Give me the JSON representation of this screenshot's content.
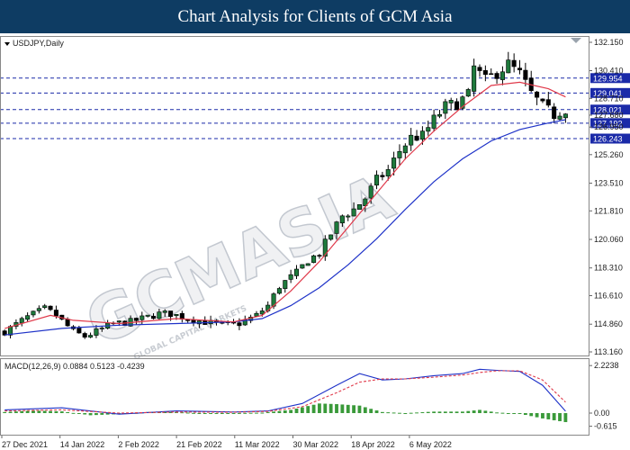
{
  "banner": {
    "title": "Chart Analysis for Clients of GCM Asia"
  },
  "colors": {
    "banner_bg": "#0e3c63",
    "bull": "#1e7a3c",
    "bear": "#000000",
    "ma_fast": "#e0394a",
    "ma_slow": "#1e32c8",
    "level_line": "#1a2aa8",
    "tag_bg": "#1a2aa8",
    "macd_line": "#1e32c8",
    "signal_line": "#e0394a",
    "hist": "#3a9a3a"
  },
  "watermark": {
    "text": "GCMASIA",
    "subtext": "GLOBAL CAPITAL MARKETS"
  },
  "chart_data": [
    {
      "type": "candlestick",
      "symbol_label": "USDJPY,Daily",
      "ylim": [
        113.16,
        132.15
      ],
      "y_ticks": [
        "132.150",
        "130.410",
        "128.710",
        "127.680",
        "126.950",
        "125.260",
        "123.510",
        "121.810",
        "120.060",
        "118.310",
        "116.610",
        "114.860",
        "113.160"
      ],
      "x_ticks": [
        "27 Dec 2021",
        "14 Jan 2022",
        "2 Feb 2022",
        "21 Feb 2022",
        "11 Mar 2022",
        "30 Mar 2022",
        "18 Apr 2022",
        "6 May 2022"
      ],
      "levels": [
        "129.954",
        "129.041",
        "128.021",
        "127.192",
        "126.243"
      ],
      "close_path": [
        [
          0,
          114.4
        ],
        [
          4,
          115.3
        ],
        [
          7,
          115.8
        ],
        [
          9,
          115.4
        ],
        [
          12,
          114.4
        ],
        [
          14,
          114.1
        ],
        [
          16,
          114.4
        ],
        [
          19,
          114.9
        ],
        [
          22,
          115.0
        ],
        [
          25,
          115.3
        ],
        [
          27,
          115.5
        ],
        [
          29,
          115.5
        ],
        [
          32,
          115.2
        ],
        [
          35,
          115.0
        ],
        [
          38,
          114.8
        ],
        [
          41,
          114.9
        ],
        [
          44,
          115.4
        ],
        [
          46,
          116.0
        ],
        [
          48,
          117.2
        ],
        [
          51,
          118.0
        ],
        [
          53,
          118.8
        ],
        [
          55,
          119.2
        ],
        [
          57,
          120.4
        ],
        [
          59,
          121.5
        ],
        [
          61,
          121.9
        ],
        [
          63,
          122.6
        ],
        [
          65,
          123.7
        ],
        [
          67,
          124.3
        ],
        [
          69,
          125.5
        ],
        [
          71,
          126.3
        ],
        [
          73,
          126.4
        ],
        [
          75,
          127.4
        ],
        [
          77,
          128.2
        ],
        [
          79,
          128.4
        ],
        [
          81,
          128.9
        ],
        [
          82,
          130.6
        ],
        [
          84,
          129.8
        ],
        [
          86,
          130.3
        ],
        [
          88,
          130.8
        ],
        [
          90,
          130.2
        ],
        [
          92,
          129.0
        ],
        [
          94,
          128.2
        ],
        [
          96,
          127.7
        ],
        [
          98,
          128.1
        ]
      ],
      "ma_fast_path": [
        [
          0,
          114.6
        ],
        [
          8,
          115.4
        ],
        [
          12,
          115.1
        ],
        [
          20,
          114.9
        ],
        [
          30,
          115.2
        ],
        [
          40,
          115.0
        ],
        [
          45,
          115.4
        ],
        [
          50,
          116.9
        ],
        [
          55,
          118.7
        ],
        [
          60,
          120.8
        ],
        [
          65,
          122.9
        ],
        [
          70,
          125.0
        ],
        [
          75,
          126.7
        ],
        [
          80,
          128.2
        ],
        [
          85,
          129.5
        ],
        [
          90,
          129.7
        ],
        [
          95,
          129.3
        ],
        [
          98,
          128.8
        ]
      ],
      "ma_slow_path": [
        [
          0,
          114.2
        ],
        [
          10,
          114.6
        ],
        [
          20,
          114.8
        ],
        [
          30,
          114.9
        ],
        [
          40,
          115.0
        ],
        [
          45,
          115.2
        ],
        [
          50,
          116.0
        ],
        [
          55,
          117.1
        ],
        [
          60,
          118.5
        ],
        [
          65,
          120.1
        ],
        [
          70,
          121.9
        ],
        [
          75,
          123.6
        ],
        [
          80,
          125.0
        ],
        [
          85,
          126.1
        ],
        [
          90,
          126.8
        ],
        [
          95,
          127.2
        ],
        [
          98,
          127.4
        ]
      ]
    },
    {
      "type": "line",
      "title": "MACD(12,26,9) 0.0884 0.5123 -0.4239",
      "ylim": [
        -0.8,
        2.4
      ],
      "y_ticks": [
        "2.2238",
        "0.00",
        "-0.615"
      ],
      "macd_path": [
        [
          0,
          0.15
        ],
        [
          10,
          0.25
        ],
        [
          20,
          -0.05
        ],
        [
          30,
          0.1
        ],
        [
          40,
          0.05
        ],
        [
          46,
          0.1
        ],
        [
          52,
          0.45
        ],
        [
          58,
          1.3
        ],
        [
          62,
          1.85
        ],
        [
          66,
          1.55
        ],
        [
          70,
          1.6
        ],
        [
          75,
          1.75
        ],
        [
          80,
          1.85
        ],
        [
          83,
          2.05
        ],
        [
          86,
          2.0
        ],
        [
          90,
          1.95
        ],
        [
          94,
          1.3
        ],
        [
          98,
          0.09
        ]
      ],
      "signal_path": [
        [
          0,
          0.1
        ],
        [
          10,
          0.15
        ],
        [
          20,
          0.0
        ],
        [
          30,
          0.05
        ],
        [
          40,
          0.04
        ],
        [
          46,
          0.08
        ],
        [
          52,
          0.3
        ],
        [
          58,
          0.95
        ],
        [
          62,
          1.45
        ],
        [
          66,
          1.6
        ],
        [
          70,
          1.6
        ],
        [
          75,
          1.68
        ],
        [
          80,
          1.78
        ],
        [
          83,
          1.9
        ],
        [
          86,
          1.98
        ],
        [
          90,
          1.98
        ],
        [
          94,
          1.55
        ],
        [
          98,
          0.51
        ]
      ],
      "hist_path": [
        [
          0,
          0.05
        ],
        [
          5,
          0.12
        ],
        [
          10,
          0.08
        ],
        [
          15,
          -0.1
        ],
        [
          20,
          -0.05
        ],
        [
          25,
          0.05
        ],
        [
          30,
          0.05
        ],
        [
          35,
          -0.02
        ],
        [
          40,
          0.0
        ],
        [
          45,
          0.02
        ],
        [
          50,
          0.15
        ],
        [
          55,
          0.45
        ],
        [
          58,
          0.42
        ],
        [
          62,
          0.35
        ],
        [
          66,
          0.05
        ],
        [
          70,
          0.0
        ],
        [
          75,
          0.07
        ],
        [
          80,
          0.07
        ],
        [
          83,
          0.15
        ],
        [
          86,
          0.03
        ],
        [
          90,
          -0.03
        ],
        [
          94,
          -0.25
        ],
        [
          98,
          -0.42
        ]
      ]
    }
  ]
}
